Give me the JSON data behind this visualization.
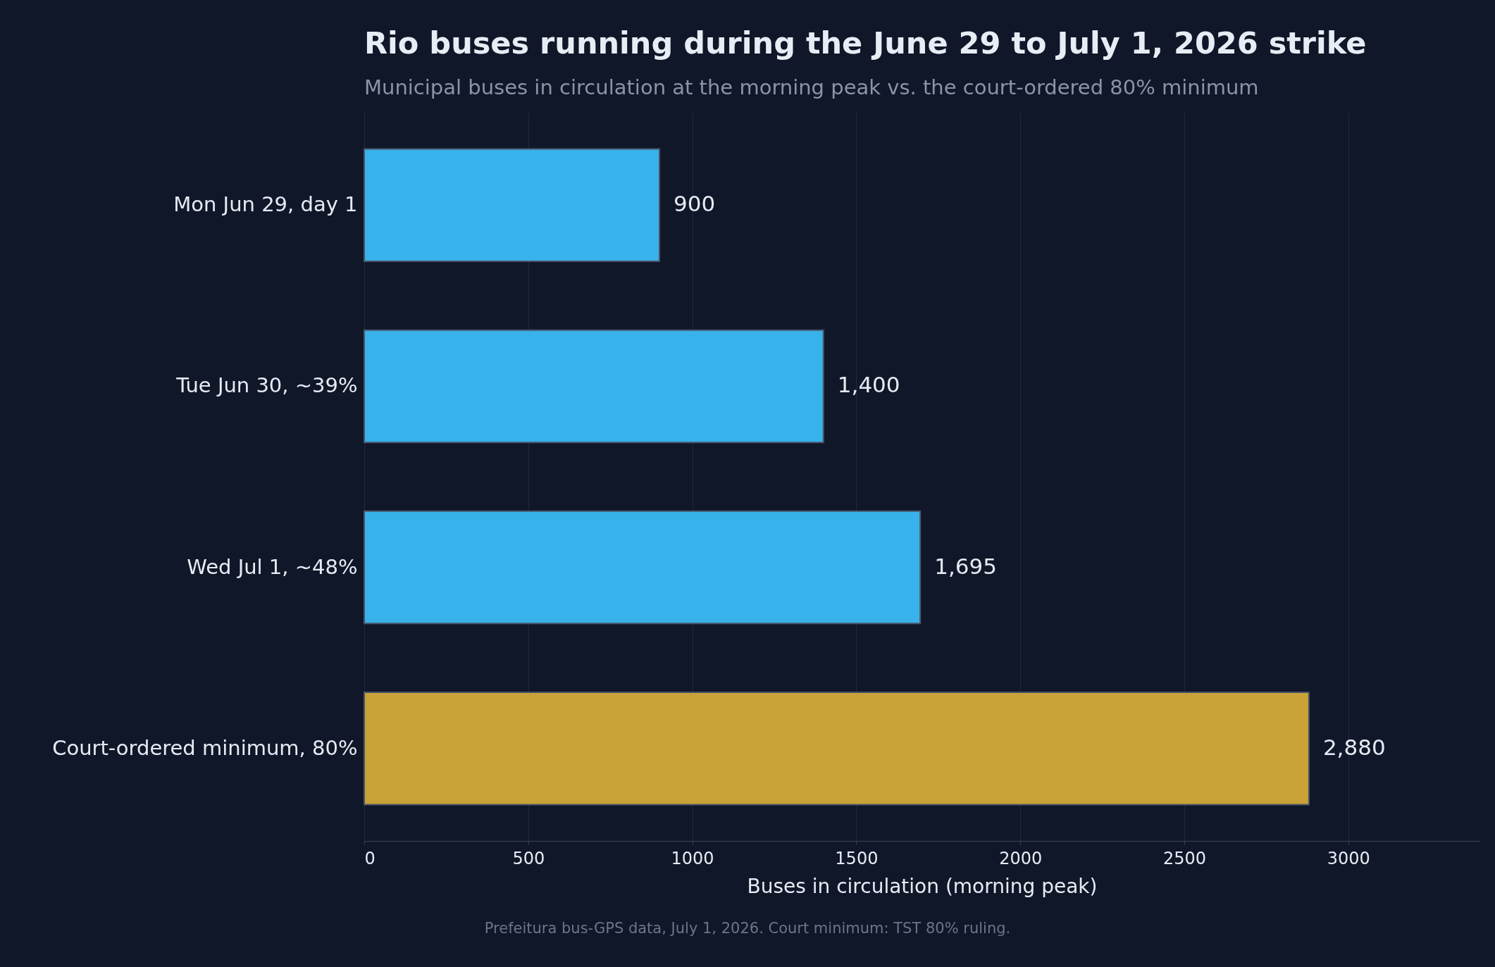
{
  "chart_data": {
    "type": "bar",
    "orientation": "horizontal",
    "title": "Rio buses running during the June 29 to July 1, 2026 strike",
    "subtitle": "Municipal buses in circulation at the morning peak vs. the court-ordered 80% minimum",
    "xlabel": "Buses in circulation (morning peak)",
    "categories": [
      "Mon Jun 29, day 1",
      "Tue Jun 30, ~39%",
      "Wed Jul 1, ~48%",
      "Court-ordered minimum, 80%"
    ],
    "values": [
      900,
      1400,
      1695,
      2880
    ],
    "value_labels": [
      "900",
      "1,400",
      "1,695",
      "2,880"
    ],
    "colors": [
      "#38b2ea",
      "#38b2ea",
      "#38b2ea",
      "#c9a338"
    ],
    "xlim": [
      0,
      3400
    ],
    "xticks": [
      0,
      500,
      1000,
      1500,
      2000,
      2500,
      3000
    ],
    "grid": "x",
    "annotations": [
      "Prefeitura bus-GPS data, July 1, 2026. Court minimum: TST 80% ruling."
    ]
  }
}
